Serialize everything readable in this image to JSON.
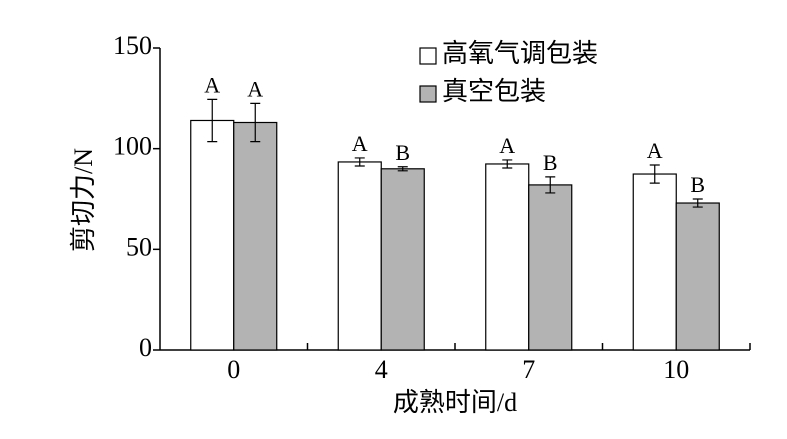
{
  "chart_data": {
    "type": "bar",
    "xlabel": "成熟时间/d",
    "ylabel": "剪切力/N",
    "categories": [
      "0",
      "4",
      "7",
      "10"
    ],
    "series": [
      {
        "name": "高氧气调包装",
        "color": "#ffffff",
        "values": [
          114,
          93.4,
          92.4,
          87.4
        ],
        "errors": [
          10.5,
          2,
          2,
          4.5
        ],
        "letters": [
          "A",
          "A",
          "A",
          "A"
        ]
      },
      {
        "name": "真空包装",
        "color": "#b3b3b3",
        "values": [
          113,
          90,
          82,
          73
        ],
        "errors": [
          9.5,
          1,
          4,
          2
        ],
        "letters": [
          "A",
          "B",
          "B",
          "B"
        ]
      }
    ],
    "ylim": [
      0,
      150
    ],
    "yticks": [
      0,
      50,
      100,
      150
    ],
    "legend": "top"
  }
}
